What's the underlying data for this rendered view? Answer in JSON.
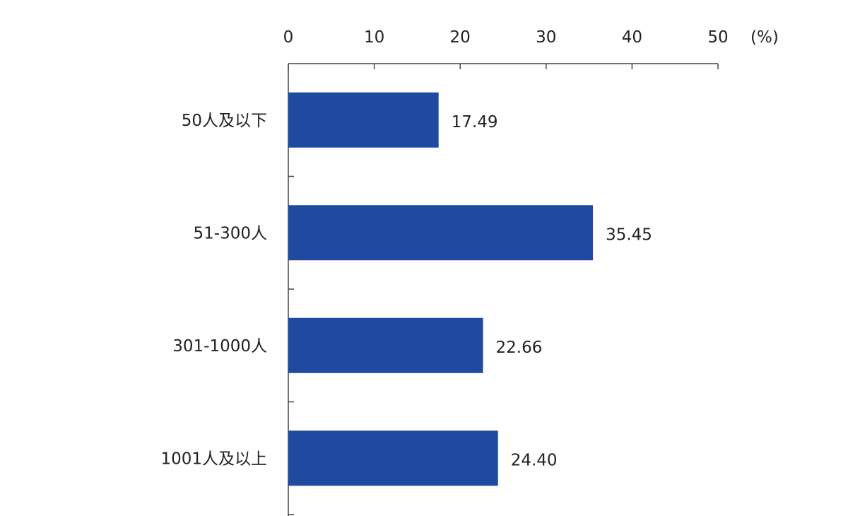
{
  "chart_data": {
    "type": "bar",
    "orientation": "horizontal",
    "categories": [
      "50人及以下",
      "51-300人",
      "301-1000人",
      "1001人及以上"
    ],
    "values": [
      17.49,
      35.45,
      22.66,
      24.4
    ],
    "value_labels": [
      "17.49",
      "35.45",
      "22.66",
      "24.40"
    ],
    "x_ticks": [
      "0",
      "10",
      "20",
      "30",
      "40",
      "50"
    ],
    "x_unit": "(%)",
    "xlim": [
      0,
      50
    ],
    "x_axis_position": "top",
    "grid": false,
    "legend": "none",
    "bar_color": "#1f4aa0"
  }
}
